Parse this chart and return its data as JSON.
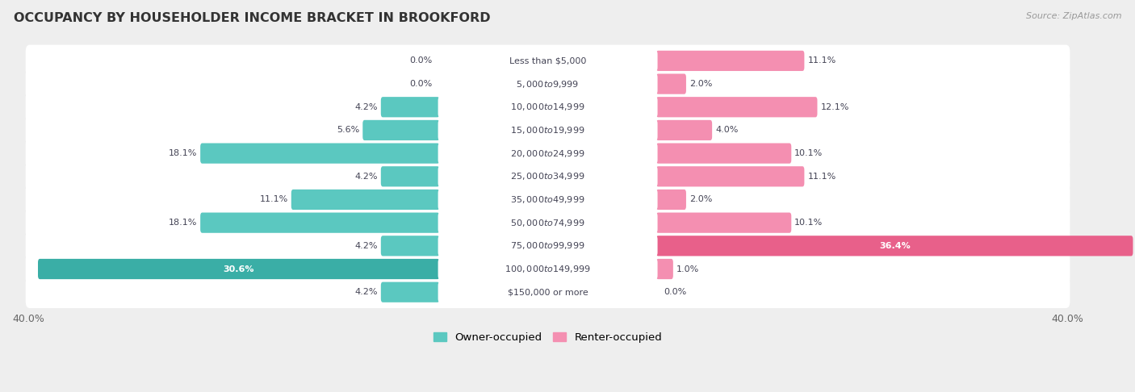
{
  "title": "OCCUPANCY BY HOUSEHOLDER INCOME BRACKET IN BROOKFORD",
  "source": "Source: ZipAtlas.com",
  "categories": [
    "Less than $5,000",
    "$5,000 to $9,999",
    "$10,000 to $14,999",
    "$15,000 to $19,999",
    "$20,000 to $24,999",
    "$25,000 to $34,999",
    "$35,000 to $49,999",
    "$50,000 to $74,999",
    "$75,000 to $99,999",
    "$100,000 to $149,999",
    "$150,000 or more"
  ],
  "owner_values": [
    0.0,
    0.0,
    4.2,
    5.6,
    18.1,
    4.2,
    11.1,
    18.1,
    4.2,
    30.6,
    4.2
  ],
  "renter_values": [
    11.1,
    2.0,
    12.1,
    4.0,
    10.1,
    11.1,
    2.0,
    10.1,
    36.4,
    1.0,
    0.0
  ],
  "owner_color": "#5BC8C0",
  "owner_color_dark": "#3AAEA6",
  "renter_color": "#F48FB1",
  "renter_color_dark": "#E8608A",
  "axis_max": 40.0,
  "background_color": "#eeeeee",
  "row_bg_color": "#ffffff",
  "label_color": "#444455",
  "title_color": "#333333",
  "legend_owner": "Owner-occupied",
  "legend_renter": "Renter-occupied",
  "white_text_rows_owner": [
    9
  ],
  "white_text_rows_renter": [
    8
  ]
}
